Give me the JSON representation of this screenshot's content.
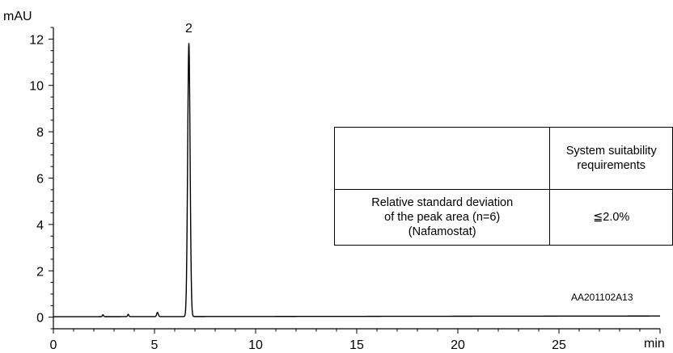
{
  "chart_data": {
    "type": "line",
    "title": "",
    "xlabel": "min",
    "ylabel": "mAU",
    "xlim": [
      0,
      30
    ],
    "ylim": [
      -0.5,
      12.5
    ],
    "x_ticks": [
      0,
      5,
      10,
      15,
      20,
      25
    ],
    "y_ticks": [
      0,
      2,
      4,
      6,
      8,
      10,
      12
    ],
    "x_tick_labels": [
      "0",
      "5",
      "10",
      "15",
      "20",
      "25"
    ],
    "y_tick_labels": [
      "0",
      "2",
      "4",
      "6",
      "8",
      "10",
      "12"
    ],
    "grid": false,
    "legend": "none",
    "series": [
      {
        "color": "#000000",
        "baseline": 0.02,
        "peaks": [
          {
            "rt": 2.45,
            "height": 0.08,
            "width": 0.03
          },
          {
            "rt": 3.7,
            "height": 0.1,
            "width": 0.03
          },
          {
            "rt": 5.15,
            "height": 0.18,
            "width": 0.04
          },
          {
            "rt": 6.7,
            "height": 11.8,
            "width": 0.06
          }
        ]
      }
    ],
    "annotations": [
      {
        "text": "2",
        "x": 6.7,
        "y": 11.8
      }
    ],
    "watermark": "AA201102A13"
  },
  "system_suitability": {
    "header": [
      "",
      "System suitability requirements"
    ],
    "rows": [
      {
        "parameter": "Relative standard deviation of the peak area (n=6) (Nafamostat)",
        "requirement": "≦2.0%"
      }
    ]
  }
}
